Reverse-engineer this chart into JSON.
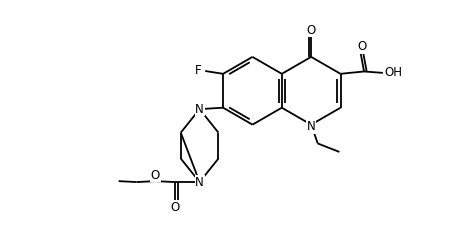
{
  "bg_color": "#ffffff",
  "line_color": "#000000",
  "lw": 1.3,
  "fs": 8.5,
  "fig_w": 4.72,
  "fig_h": 2.38,
  "dpi": 100,
  "xlim": [
    0,
    10
  ],
  "ylim": [
    0,
    5
  ]
}
